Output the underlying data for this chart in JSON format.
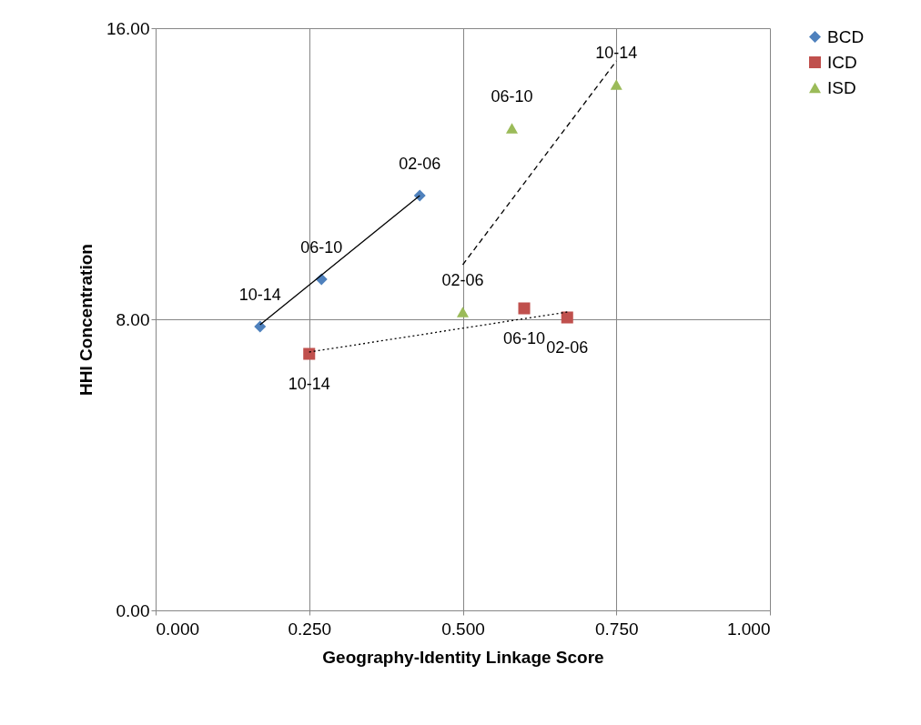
{
  "chart_data": {
    "type": "scatter",
    "xlabel": "Geography-Identity Linkage Score",
    "ylabel": "HHI Concentration",
    "xlim": [
      0,
      1
    ],
    "ylim": [
      0,
      16
    ],
    "xticks": [
      {
        "value": 0,
        "label": "0.000"
      },
      {
        "value": 0.25,
        "label": "0.250"
      },
      {
        "value": 0.5,
        "label": "0.500"
      },
      {
        "value": 0.75,
        "label": "0.750"
      },
      {
        "value": 1,
        "label": "1.000"
      }
    ],
    "yticks": [
      {
        "value": 0,
        "label": "0.00"
      },
      {
        "value": 8,
        "label": "8.00"
      },
      {
        "value": 16,
        "label": "16.00"
      }
    ],
    "grid": true,
    "legend": "right",
    "series": [
      {
        "name": "BCD",
        "marker": "diamond",
        "color": "#4f81bd",
        "x": [
          0.43,
          0.27,
          0.17
        ],
        "values": [
          11.4,
          9.1,
          7.8
        ]
      },
      {
        "name": "ICD",
        "marker": "square",
        "color": "#c0504d",
        "x": [
          0.67,
          0.6,
          0.25
        ],
        "values": [
          8.05,
          8.3,
          7.05
        ]
      },
      {
        "name": "ISD",
        "marker": "triangle",
        "color": "#9bbb59",
        "x": [
          0.5,
          0.58,
          0.75
        ],
        "values": [
          8.2,
          13.25,
          14.45
        ]
      },
      {
        "type": "line",
        "line_style": "solid",
        "color": "#000000",
        "x": [
          0.17,
          0.43
        ],
        "values": [
          7.85,
          11.4
        ]
      },
      {
        "type": "line",
        "line_style": "dotted",
        "color": "#000000",
        "x": [
          0.25,
          0.67
        ],
        "values": [
          7.1,
          8.2
        ]
      },
      {
        "type": "line",
        "line_style": "dashed",
        "color": "#000000",
        "x": [
          0.5,
          0.75
        ],
        "values": [
          9.5,
          15.1
        ]
      }
    ],
    "annotations": [
      {
        "text": "02-06",
        "x": 0.43,
        "y": 11.4
      },
      {
        "text": "06-10",
        "x": 0.27,
        "y": 9.1
      },
      {
        "text": "10-14",
        "x": 0.17,
        "y": 7.8
      },
      {
        "text": "06-10",
        "x": 0.6,
        "y": 8.3
      },
      {
        "text": "02-06",
        "x": 0.67,
        "y": 8.05
      },
      {
        "text": "10-14",
        "x": 0.25,
        "y": 7.05
      },
      {
        "text": "02-06",
        "x": 0.5,
        "y": 8.2
      },
      {
        "text": "06-10",
        "x": 0.58,
        "y": 13.25
      },
      {
        "text": "10-14",
        "x": 0.75,
        "y": 14.45
      }
    ]
  }
}
